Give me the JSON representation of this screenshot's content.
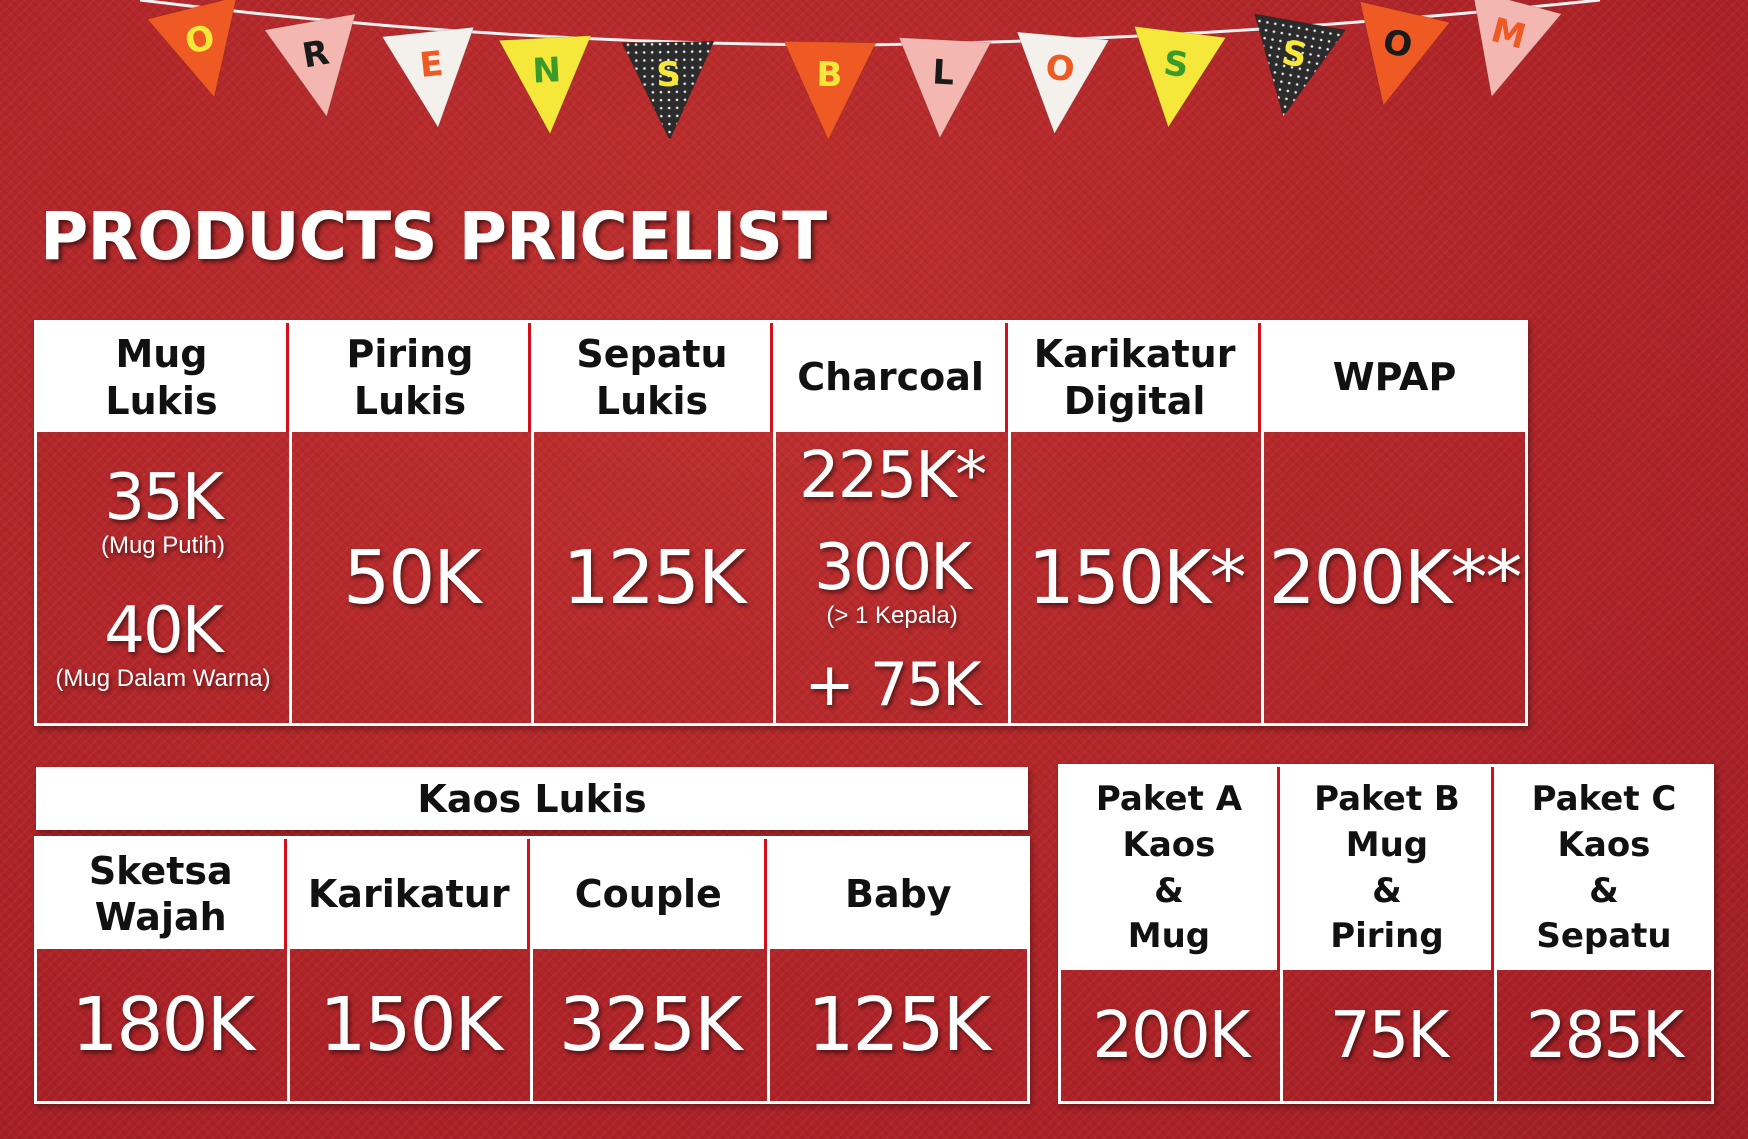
{
  "bunting": {
    "letters": [
      "O",
      "R",
      "E",
      "N",
      "S",
      "B",
      "L",
      "O",
      "S",
      "S",
      "O",
      "M"
    ],
    "colors": {
      "orange": "#ef5a24",
      "pink": "#f3b6b0",
      "white": "#f4f0ec",
      "yellow": "#f6e83a",
      "dark": "#2b2b2b",
      "string": "#f1f1f1"
    }
  },
  "title": "PRODUCTS PRICELIST",
  "top_table": {
    "mug_lukis": {
      "header": "Mug\nLukis",
      "price_1": "35K",
      "note_1": "(Mug Putih)",
      "price_2": "40K",
      "note_2": "(Mug Dalam Warna)"
    },
    "piring_lukis": {
      "header": "Piring\nLukis",
      "price": "50K"
    },
    "sepatu_lukis": {
      "header": "Sepatu\nLukis",
      "price": "125K"
    },
    "charcoal": {
      "header": "Charcoal",
      "price_1": "225K*",
      "price_2": "300K",
      "note_2": "(> 1 Kepala)",
      "price_3": "+ 75K"
    },
    "karikatur_digital": {
      "header": "Karikatur\nDigital",
      "price": "150K*"
    },
    "wpap": {
      "header": "WPAP",
      "price": "200K**"
    }
  },
  "kaos_table": {
    "title": "Kaos Lukis",
    "columns": [
      {
        "header": "Sketsa\nWajah",
        "price": "180K"
      },
      {
        "header": "Karikatur",
        "price": "150K"
      },
      {
        "header": "Couple",
        "price": "325K"
      },
      {
        "header": "Baby",
        "price": "125K"
      }
    ]
  },
  "paket_table": {
    "columns": [
      {
        "header": "Paket A\nKaos\n&\nMug",
        "price": "200K"
      },
      {
        "header": "Paket B\nMug\n&\nPiring",
        "price": "75K"
      },
      {
        "header": "Paket C\nKaos\n&\nSepatu",
        "price": "285K"
      }
    ]
  }
}
